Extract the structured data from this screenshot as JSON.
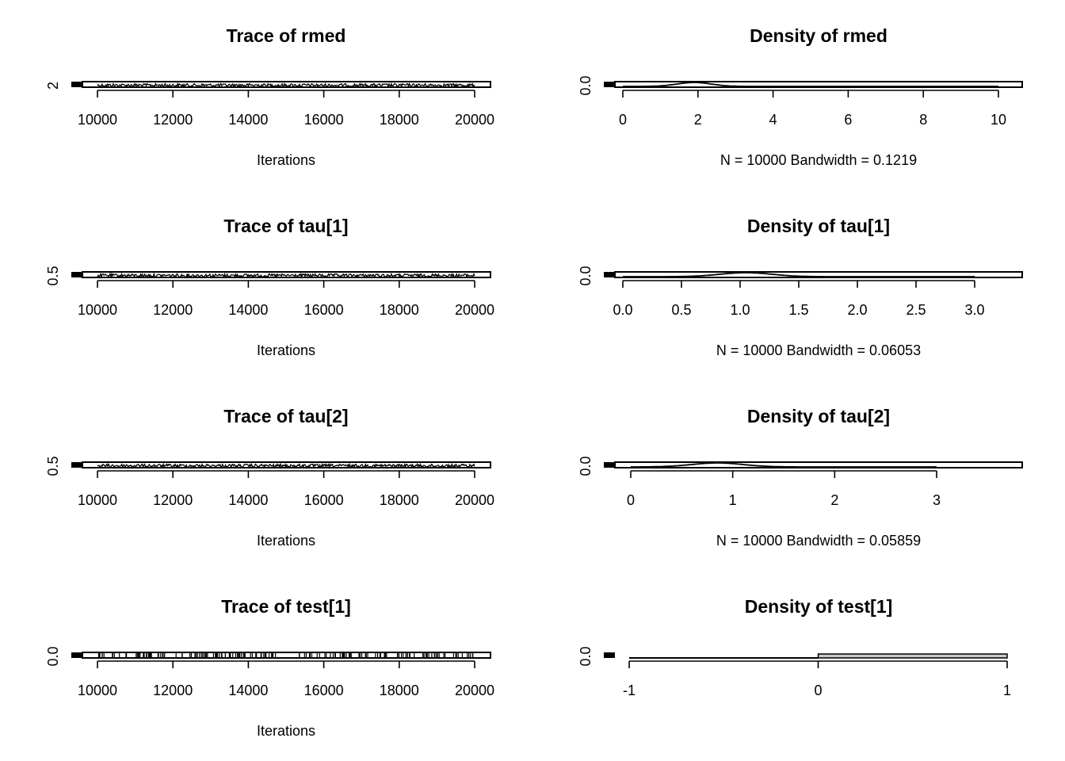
{
  "chart_data": [
    {
      "type": "line",
      "title": "Trace of rmed",
      "xlabel": "Iterations",
      "x_ticks": [
        "10000",
        "12000",
        "14000",
        "16000",
        "18000",
        "20000"
      ],
      "y_ticks": [
        "2"
      ],
      "xlim": [
        10000,
        20000
      ]
    },
    {
      "type": "line",
      "title": "Density of rmed",
      "xlabel": "N = 10000   Bandwidth = 0.1219",
      "x_ticks": [
        "0",
        "2",
        "4",
        "6",
        "8",
        "10"
      ],
      "y_ticks": [
        "0.0"
      ],
      "xlim": [
        0,
        10
      ]
    },
    {
      "type": "line",
      "title": "Trace of tau[1]",
      "xlabel": "Iterations",
      "x_ticks": [
        "10000",
        "12000",
        "14000",
        "16000",
        "18000",
        "20000"
      ],
      "y_ticks": [
        "0.5"
      ],
      "xlim": [
        10000,
        20000
      ]
    },
    {
      "type": "line",
      "title": "Density of tau[1]",
      "xlabel": "N = 10000   Bandwidth = 0.06053",
      "x_ticks": [
        "0.0",
        "0.5",
        "1.0",
        "1.5",
        "2.0",
        "2.5",
        "3.0"
      ],
      "y_ticks": [
        "0.0"
      ],
      "xlim": [
        0,
        3
      ]
    },
    {
      "type": "line",
      "title": "Trace of tau[2]",
      "xlabel": "Iterations",
      "x_ticks": [
        "10000",
        "12000",
        "14000",
        "16000",
        "18000",
        "20000"
      ],
      "y_ticks": [
        "0.5"
      ],
      "xlim": [
        10000,
        20000
      ]
    },
    {
      "type": "line",
      "title": "Density of tau[2]",
      "xlabel": "N = 10000   Bandwidth = 0.05859",
      "x_ticks": [
        "0",
        "1",
        "2",
        "3"
      ],
      "y_ticks": [
        "0.0"
      ],
      "xlim": [
        0,
        3
      ]
    },
    {
      "type": "line",
      "title": "Trace of test[1]",
      "xlabel": "Iterations",
      "x_ticks": [
        "10000",
        "12000",
        "14000",
        "16000",
        "18000",
        "20000"
      ],
      "y_ticks": [
        "0.0"
      ],
      "xlim": [
        10000,
        20000
      ]
    },
    {
      "type": "bar",
      "title": "Density of test[1]",
      "xlabel": "",
      "x_ticks": [
        "-1",
        "0",
        "1"
      ],
      "y_ticks": [
        "0.0"
      ],
      "xlim": [
        -1,
        1
      ],
      "bar_fill": "#c8c8c8"
    }
  ]
}
